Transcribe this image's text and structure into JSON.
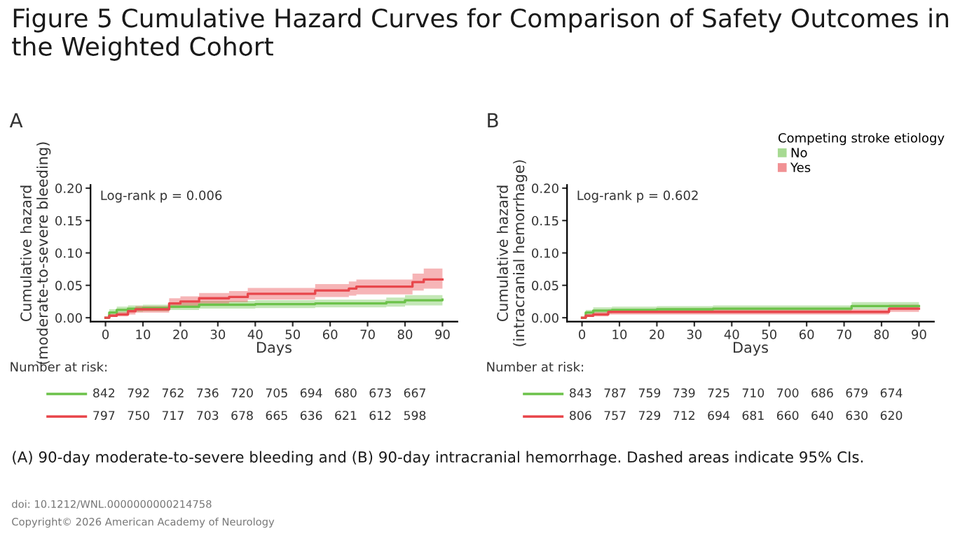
{
  "chart_data": [
    {
      "type": "step",
      "title": "Figure 5 Cumulative Hazard Curves for Comparison of Safety Outcomes in the Weighted Cohort",
      "xlabel": "Days",
      "ylabel": "Cumulative hazard\n(moderate-to-severe bleeding)",
      "xlim": [
        -4,
        94
      ],
      "xticks": [
        0,
        10,
        20,
        30,
        40,
        50,
        60,
        70,
        80,
        90
      ],
      "ylim": [
        -0.006,
        0.205
      ],
      "yticks": [
        {
          "value": 0,
          "label": "0.00"
        },
        {
          "value": 0.05,
          "label": "0.05"
        },
        {
          "value": 0.1,
          "label": "0.10"
        },
        {
          "value": 0.15,
          "label": "0.15"
        },
        {
          "value": 0.2,
          "label": "0.20"
        }
      ],
      "grid": false,
      "legend": false,
      "series": [
        {
          "color": "#6cc24a",
          "x": [
            0,
            1,
            3,
            6,
            10,
            17,
            25,
            40,
            56,
            75,
            80,
            90
          ],
          "values": [
            0,
            0.008,
            0.012,
            0.014,
            0.015,
            0.017,
            0.02,
            0.021,
            0.022,
            0.024,
            0.027,
            0.028
          ],
          "lower": [
            0,
            0.004,
            0.007,
            0.009,
            0.01,
            0.012,
            0.014,
            0.015,
            0.016,
            0.017,
            0.019,
            0.019
          ],
          "upper": [
            0,
            0.013,
            0.017,
            0.019,
            0.02,
            0.023,
            0.026,
            0.027,
            0.028,
            0.031,
            0.035,
            0.036
          ]
        },
        {
          "color": "#e8474c",
          "x": [
            0,
            1,
            3,
            6,
            8,
            17,
            20,
            25,
            33,
            38,
            56,
            65,
            67,
            82,
            85,
            90
          ],
          "values": [
            0,
            0.003,
            0.005,
            0.01,
            0.013,
            0.022,
            0.025,
            0.03,
            0.032,
            0.037,
            0.042,
            0.045,
            0.048,
            0.055,
            0.059,
            0.059
          ],
          "lower": [
            0,
            0.001,
            0.002,
            0.005,
            0.008,
            0.015,
            0.018,
            0.022,
            0.024,
            0.028,
            0.032,
            0.034,
            0.036,
            0.042,
            0.045,
            0.045
          ],
          "upper": [
            0,
            0.006,
            0.009,
            0.015,
            0.018,
            0.03,
            0.033,
            0.038,
            0.041,
            0.046,
            0.052,
            0.056,
            0.059,
            0.068,
            0.076,
            0.076
          ]
        }
      ],
      "annotations": [
        "A",
        "Log-rank p = 0.006",
        "Number at risk:",
        "842   792   762   736   720   705   694   680   673   667",
        "797   750   717   703   678   665   636   621   612   598"
      ]
    },
    {
      "type": "step",
      "xlabel": "Days",
      "ylabel": "Cumulative hazard\n(intracranial hemorrhage)",
      "legend_title": "Competing stroke etiology",
      "xlim": [
        -4,
        94
      ],
      "xticks": [
        0,
        10,
        20,
        30,
        40,
        50,
        60,
        70,
        80,
        90
      ],
      "ylim": [
        -0.006,
        0.205
      ],
      "yticks": [
        {
          "value": 0,
          "label": "0.00"
        },
        {
          "value": 0.05,
          "label": "0.05"
        },
        {
          "value": 0.1,
          "label": "0.10"
        },
        {
          "value": 0.15,
          "label": "0.15"
        },
        {
          "value": 0.2,
          "label": "0.20"
        }
      ],
      "grid": false,
      "legend": "top right",
      "series": [
        {
          "name": "No",
          "color": "#6cc24a",
          "x": [
            0,
            1,
            3,
            8,
            20,
            35,
            72,
            90
          ],
          "values": [
            0,
            0.008,
            0.011,
            0.012,
            0.013,
            0.014,
            0.018,
            0.018
          ],
          "lower": [
            0,
            0.004,
            0.007,
            0.008,
            0.009,
            0.01,
            0.013,
            0.013
          ],
          "upper": [
            0,
            0.012,
            0.016,
            0.017,
            0.018,
            0.019,
            0.024,
            0.024
          ]
        },
        {
          "name": "Yes",
          "color": "#e8474c",
          "x": [
            0,
            1,
            3,
            7,
            82,
            90
          ],
          "values": [
            0,
            0.003,
            0.005,
            0.009,
            0.014,
            0.014
          ],
          "lower": [
            0,
            0.001,
            0.002,
            0.005,
            0.009,
            0.009
          ],
          "upper": [
            0,
            0.006,
            0.009,
            0.013,
            0.02,
            0.02
          ]
        }
      ],
      "annotations": [
        "B",
        "Log-rank p = 0.602",
        "Number at risk:",
        "843   787   759   739   725   710   700   686   679   674",
        "806   757   729   712   694   681   660   640   630   620",
        "(A) 90-day moderate-to-severe bleeding and (B) 90-day intracranial hemorrhage. Dashed areas indicate 95% CIs.",
        "doi: 10.1212/WNL.0000000000214758",
        "Copyright© 2026 American Academy of Neurology"
      ]
    }
  ]
}
